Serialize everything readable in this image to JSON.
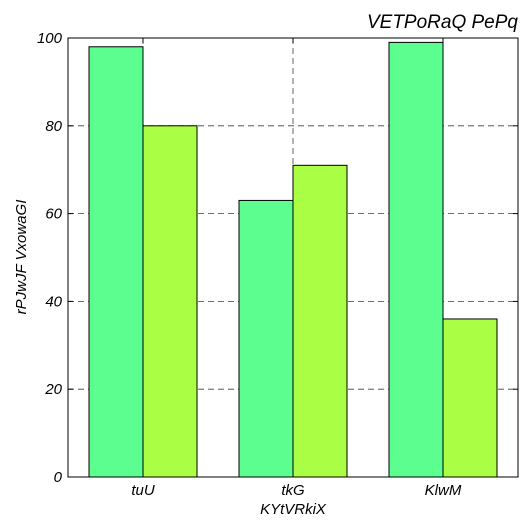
{
  "chart_data": {
    "type": "bar",
    "title": "VETPoRaQ PePq",
    "xlabel": "KYtVRkiX",
    "ylabel": "rPJwJF VxowaGI",
    "categories": [
      "tuU",
      "tkG",
      "KlwM"
    ],
    "series": [
      {
        "values": [
          98,
          63,
          99
        ],
        "color": "#5cff8f"
      },
      {
        "values": [
          80,
          71,
          36
        ],
        "color": "#aaff44"
      }
    ],
    "ylim": [
      0,
      100
    ],
    "yticks": [
      0,
      20,
      40,
      60,
      80,
      100
    ],
    "grid": true
  }
}
